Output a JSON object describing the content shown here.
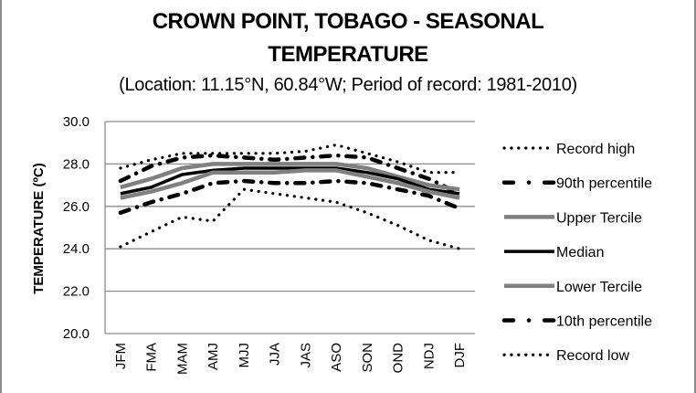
{
  "chart_data": {
    "type": "line",
    "title_line1": "CROWN POINT, TOBAGO - SEASONAL",
    "title_line2": "TEMPERATURE",
    "subtitle": "(Location: 11.15°N, 60.84°W; Period of record: 1981-2010)",
    "xlabel": "",
    "ylabel": "TEMPERATURE (ºC)",
    "ylim": [
      20.0,
      30.0
    ],
    "yticks": [
      "20.0",
      "22.0",
      "24.0",
      "26.0",
      "28.0",
      "30.0"
    ],
    "grid": true,
    "legend_position": "right",
    "categories": [
      "JFM",
      "FMA",
      "MAM",
      "AMJ",
      "MJJ",
      "JJA",
      "JAS",
      "ASO",
      "SON",
      "OND",
      "NDJ",
      "DJF"
    ],
    "series": [
      {
        "name": "Record high",
        "style": "dotted",
        "color": "#000000",
        "values": [
          27.8,
          28.2,
          28.5,
          28.5,
          28.5,
          28.5,
          28.6,
          28.9,
          28.5,
          28.1,
          27.6,
          27.6
        ]
      },
      {
        "name": "90th percentile",
        "style": "dashdot",
        "color": "#000000",
        "values": [
          27.2,
          27.9,
          28.3,
          28.4,
          28.3,
          28.2,
          28.3,
          28.4,
          28.3,
          27.8,
          27.3,
          26.6
        ]
      },
      {
        "name": "Upper Tercile",
        "style": "solid",
        "color": "#808080",
        "values": [
          26.9,
          27.3,
          27.8,
          28.0,
          28.0,
          28.0,
          28.0,
          28.0,
          27.8,
          27.4,
          27.0,
          26.8
        ]
      },
      {
        "name": "Median",
        "style": "solid",
        "color": "#000000",
        "values": [
          26.6,
          26.9,
          27.5,
          27.7,
          27.8,
          27.8,
          27.8,
          27.8,
          27.6,
          27.3,
          26.8,
          26.6
        ]
      },
      {
        "name": "Lower Tercile",
        "style": "solid",
        "color": "#808080",
        "values": [
          26.4,
          26.7,
          27.1,
          27.6,
          27.6,
          27.6,
          27.7,
          27.7,
          27.4,
          27.1,
          26.7,
          26.4
        ]
      },
      {
        "name": "10th percentile",
        "style": "dashdot",
        "color": "#000000",
        "values": [
          25.7,
          26.2,
          26.6,
          27.1,
          27.2,
          27.1,
          27.1,
          27.2,
          27.1,
          26.8,
          26.5,
          25.9
        ]
      },
      {
        "name": "Record low",
        "style": "dotted",
        "color": "#000000",
        "values": [
          24.1,
          24.8,
          25.5,
          25.3,
          26.8,
          26.6,
          26.4,
          26.2,
          25.7,
          25.1,
          24.4,
          24.0
        ]
      }
    ]
  }
}
